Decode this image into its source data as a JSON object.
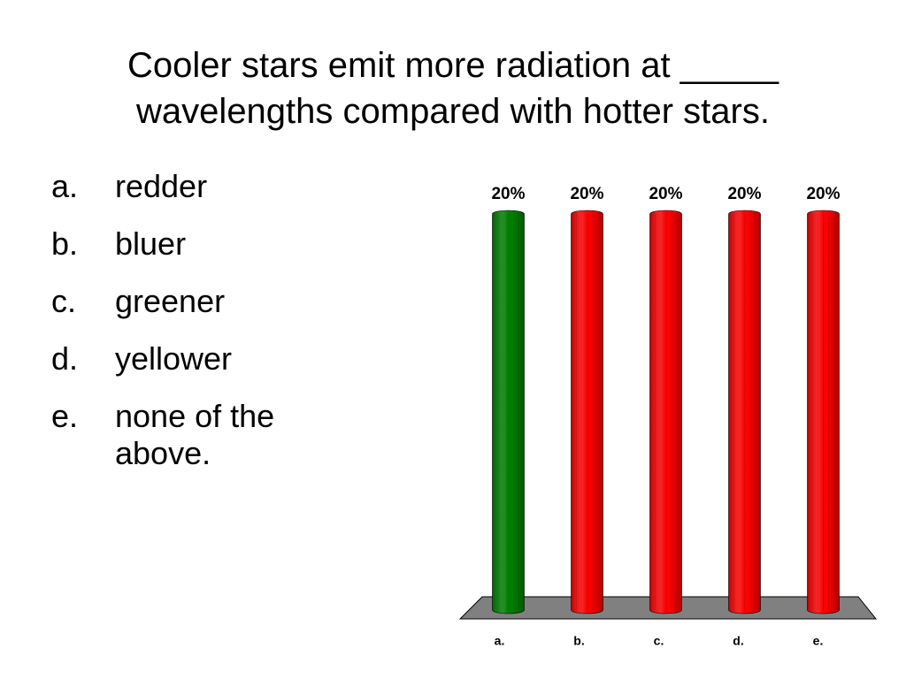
{
  "title": "Cooler stars emit more radiation at _____ wavelengths compared with hotter stars.",
  "options": [
    {
      "letter": "a.",
      "text": "redder"
    },
    {
      "letter": "b.",
      "text": "bluer"
    },
    {
      "letter": "c.",
      "text": "greener"
    },
    {
      "letter": "d.",
      "text": "yellower"
    },
    {
      "letter": "e.",
      "text": "none of the above."
    }
  ],
  "chart_data": {
    "type": "bar",
    "categories": [
      "a.",
      "b.",
      "c.",
      "d.",
      "e."
    ],
    "values": [
      20,
      20,
      20,
      20,
      20
    ],
    "value_labels": [
      "20%",
      "20%",
      "20%",
      "20%",
      "20%"
    ],
    "colors": [
      "#008000",
      "#ff0000",
      "#ff0000",
      "#ff0000",
      "#ff0000"
    ],
    "floor_color": "#808080"
  }
}
